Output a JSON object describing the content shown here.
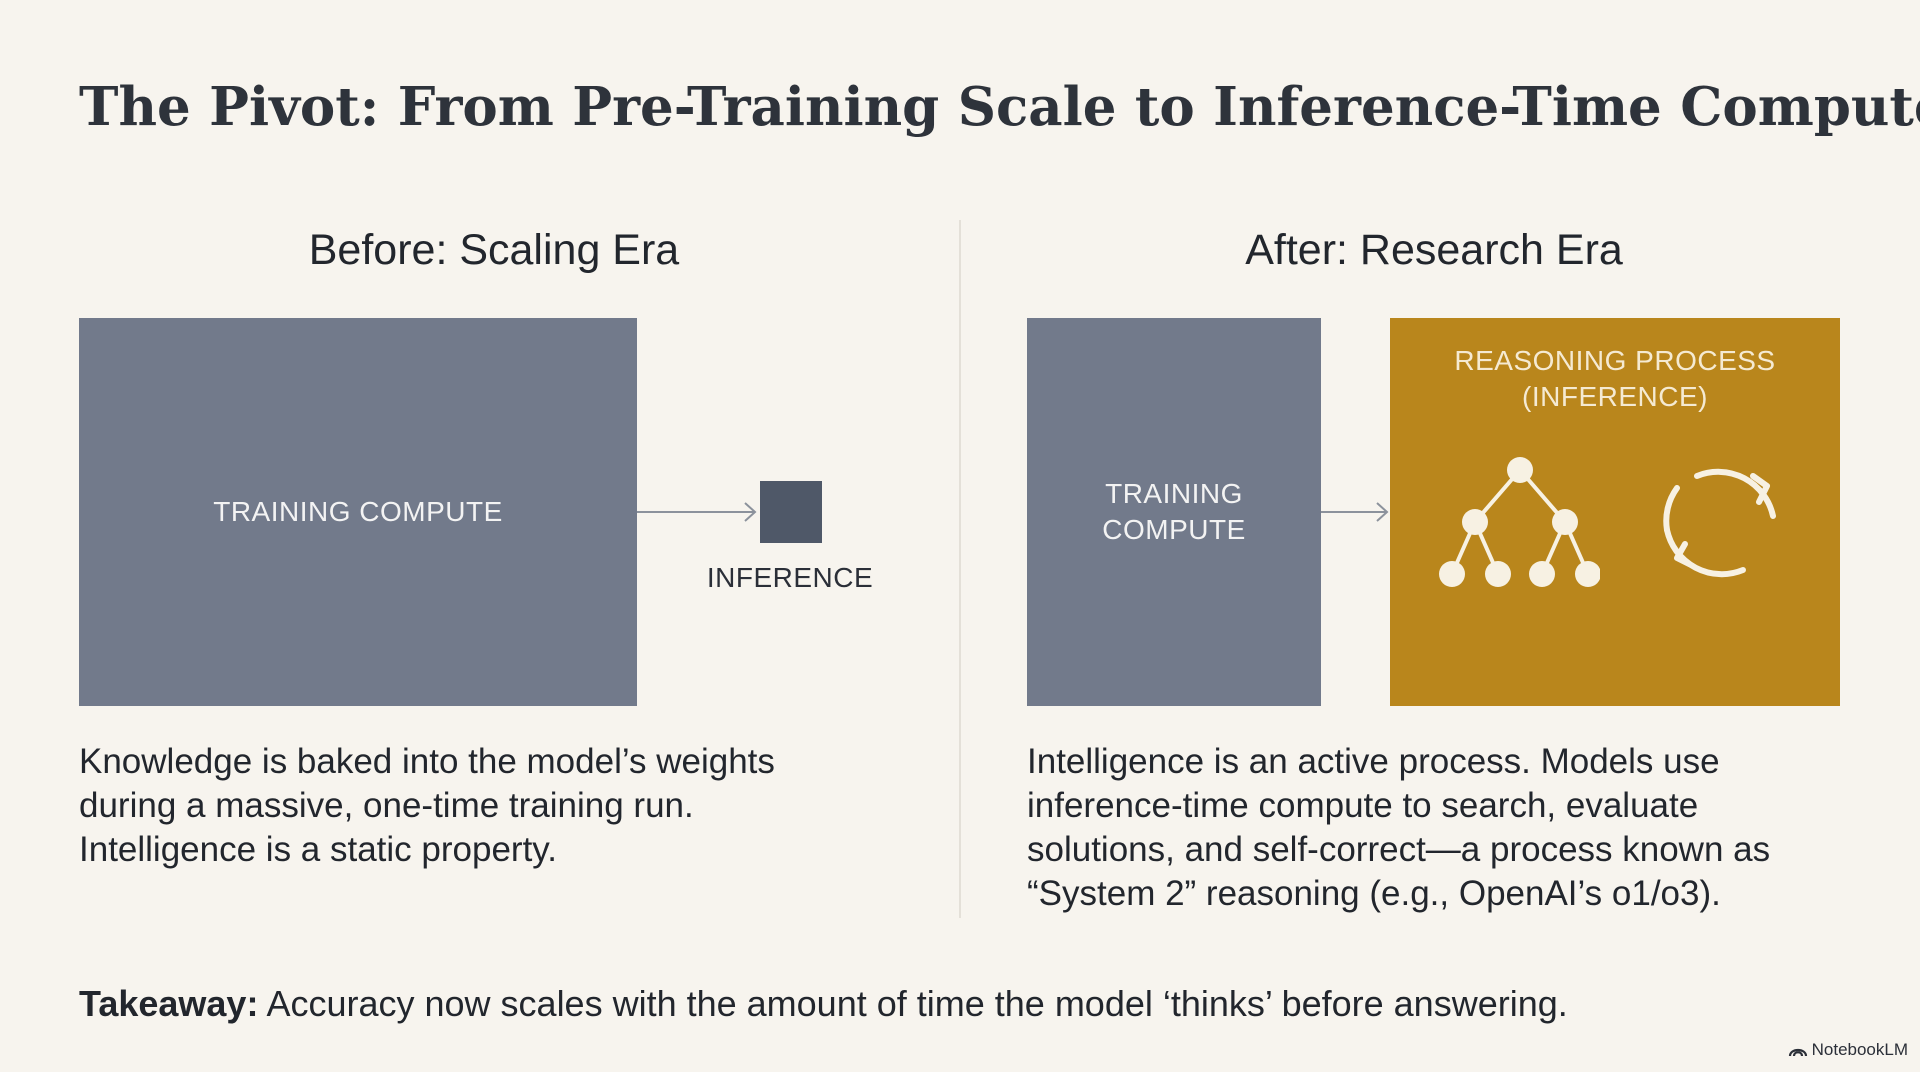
{
  "title": "The Pivot: From Pre-Training Scale to Inference-Time Compute",
  "before": {
    "heading": "Before: Scaling Era",
    "training_box": "TRAINING COMPUTE",
    "inference_label": "INFERENCE",
    "description": [
      "Knowledge is baked into the model’s weights",
      "during a massive, one-time training run.",
      "Intelligence is a static property."
    ]
  },
  "after": {
    "heading": "After: Research Era",
    "training_box": [
      "TRAINING",
      "COMPUTE"
    ],
    "reasoning_box": [
      "REASONING PROCESS",
      "(INFERENCE)"
    ],
    "description": [
      "Intelligence is an active process. Models use",
      "inference-time compute to search, evaluate",
      "solutions, and self-correct—a process known as",
      "“System 2” reasoning (e.g., OpenAI’s o1/o3)."
    ]
  },
  "takeaway": {
    "label": "Takeaway:",
    "text": " Accuracy now scales with the amount of time the model ‘thinks’ before answering."
  },
  "brand": "NotebookLM",
  "icons": {
    "tree": "tree-search-icon",
    "cycle": "refresh-cycle-icon",
    "brand": "notebooklm-logo-icon"
  },
  "colors": {
    "background": "#f7f4ee",
    "training_gray": "#727a8b",
    "inference_dark": "#4f5868",
    "reasoning_gold": "#b9861c"
  }
}
